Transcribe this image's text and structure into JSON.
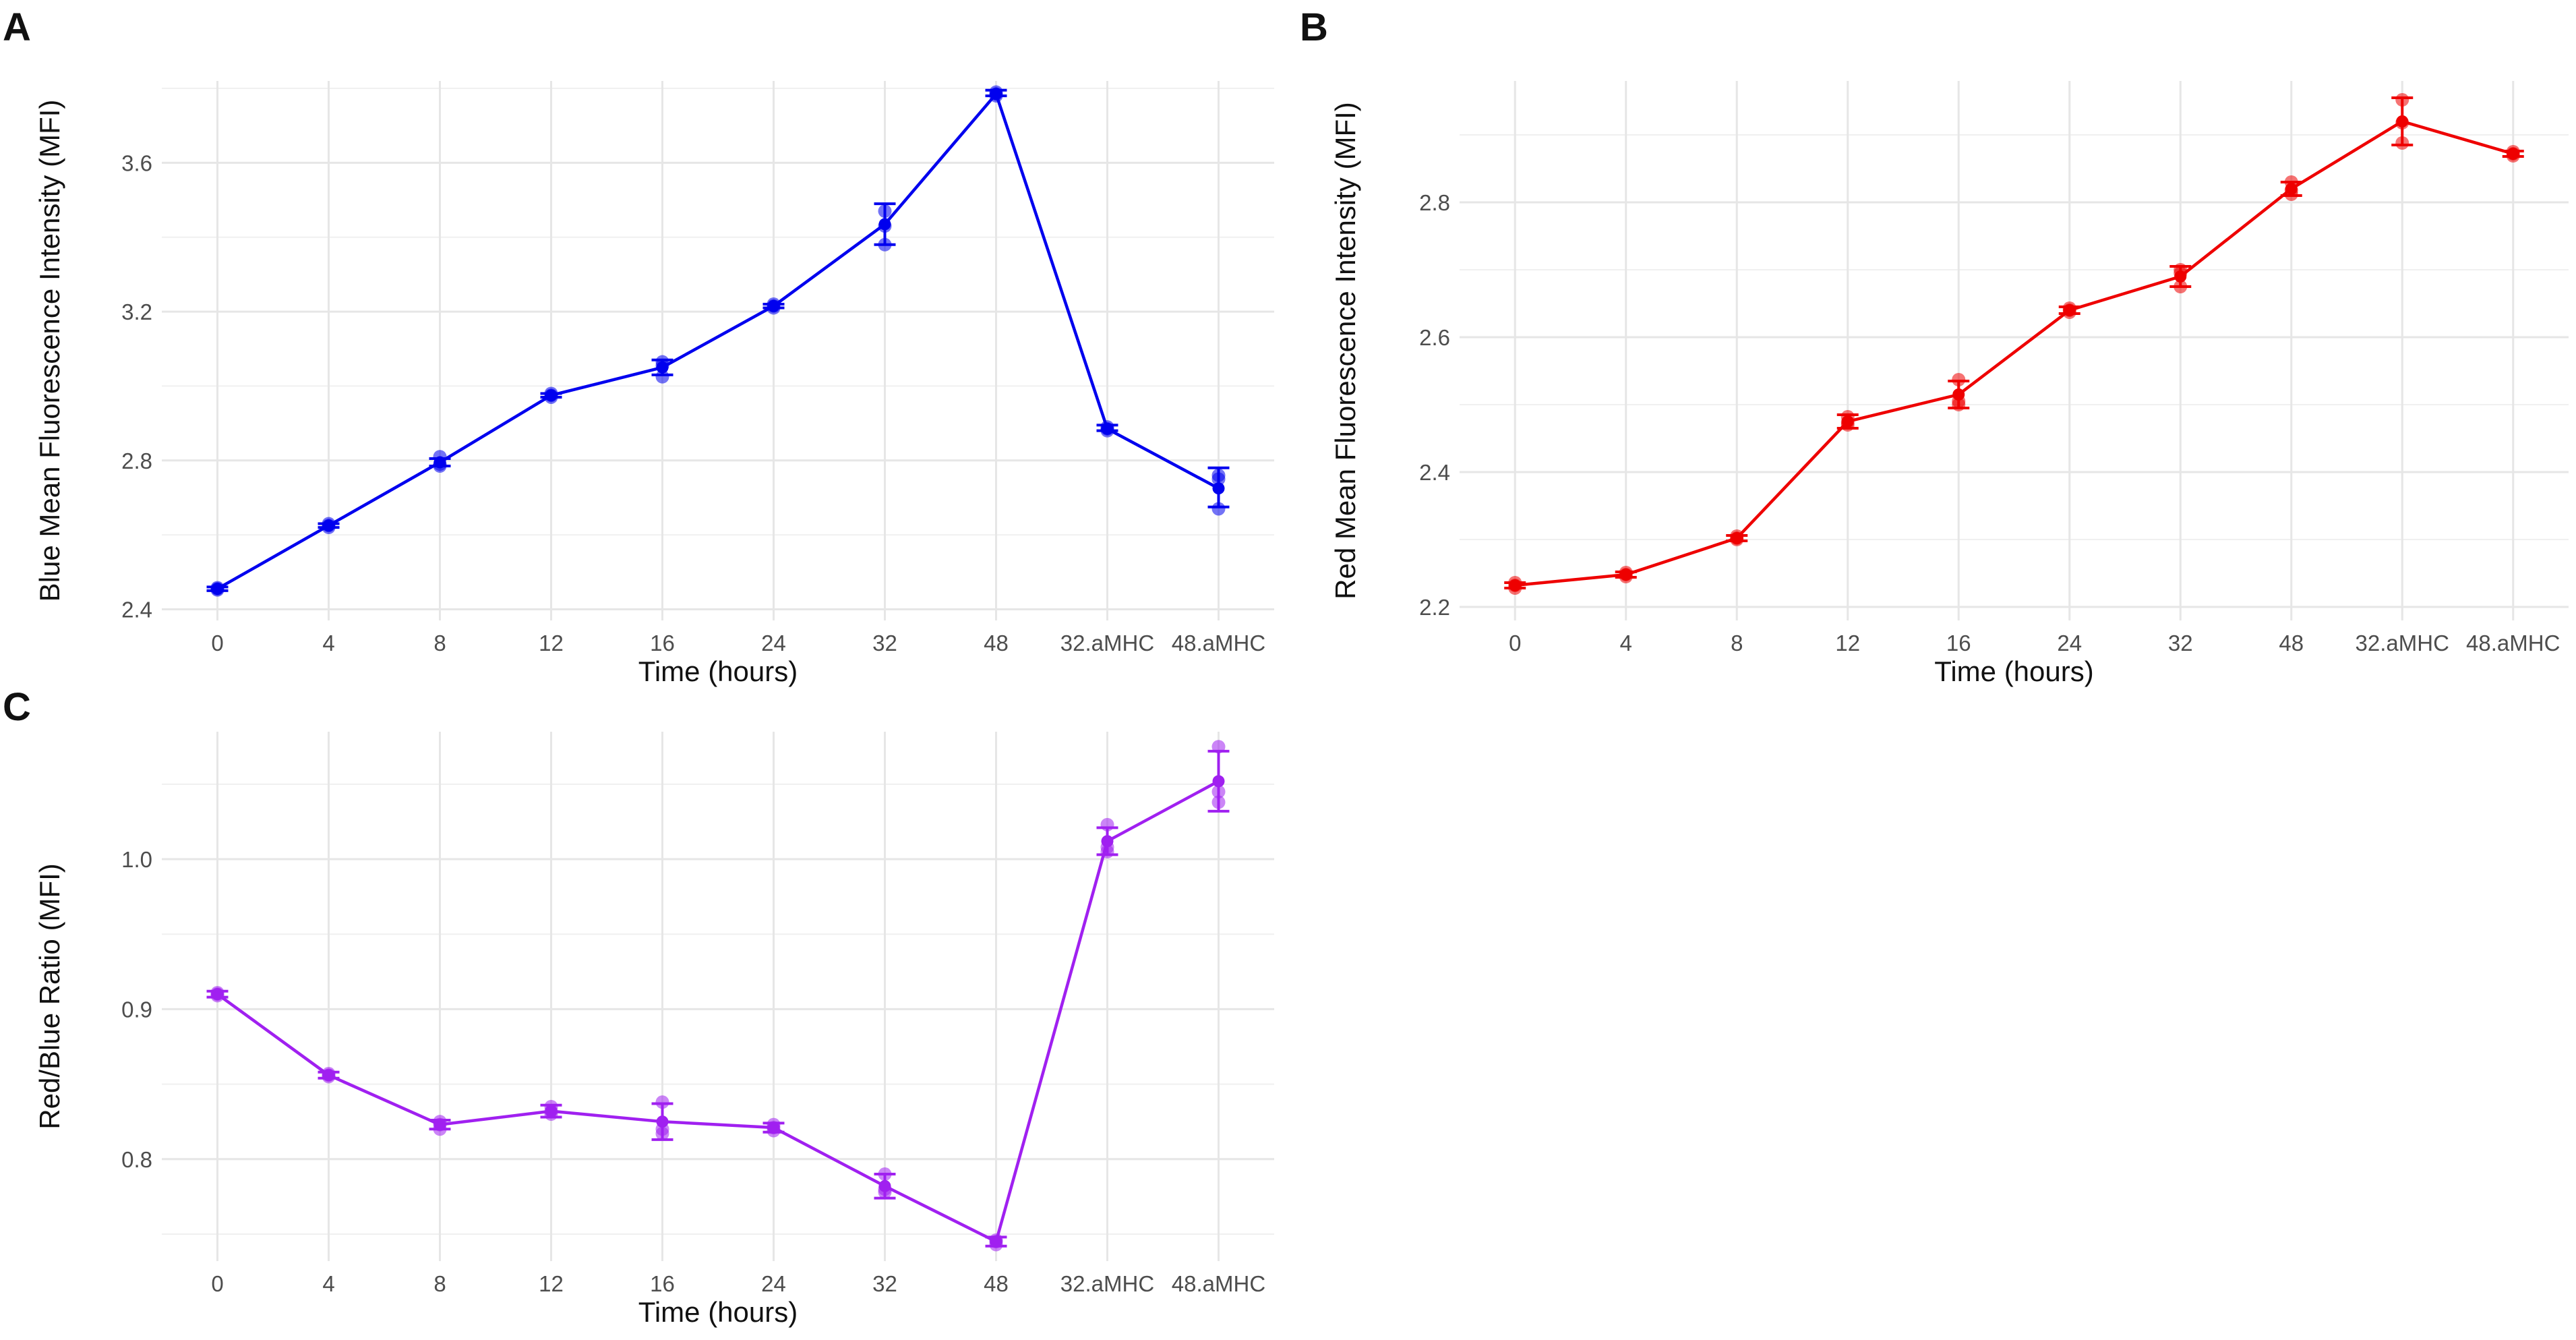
{
  "chart_data": [
    {
      "panel": "A",
      "type": "line",
      "title": "",
      "xlabel": "Time (hours)",
      "ylabel": "Blue Mean Fluorescence Intensity (MFI)",
      "categories": [
        "0",
        "4",
        "8",
        "12",
        "16",
        "24",
        "32",
        "48",
        "32.aMHC",
        "48.aMHC"
      ],
      "ylim": [
        2.37,
        3.82
      ],
      "yticks": [
        2.4,
        2.8,
        3.2,
        3.6
      ],
      "ytick_labels": [
        "2.4",
        "2.8",
        "3.2",
        "3.6"
      ],
      "grid": true,
      "legend": "none",
      "color": "#0000ee",
      "series": [
        {
          "mean": [
            2.455,
            2.625,
            2.795,
            2.975,
            3.05,
            3.215,
            3.435,
            3.785,
            2.885,
            2.725
          ],
          "error_low": [
            2.45,
            2.62,
            2.785,
            2.97,
            3.03,
            3.21,
            3.38,
            3.78,
            2.88,
            2.675
          ],
          "error_high": [
            2.46,
            2.63,
            2.805,
            2.98,
            3.07,
            3.22,
            3.49,
            3.795,
            2.895,
            2.78
          ],
          "points": [
            [
              2.452,
              2.455,
              2.458
            ],
            [
              2.62,
              2.625,
              2.63
            ],
            [
              2.785,
              2.79,
              2.81
            ],
            [
              2.97,
              2.975,
              2.98
            ],
            [
              3.025,
              3.055,
              3.065
            ],
            [
              3.21,
              3.215,
              3.22
            ],
            [
              3.38,
              3.43,
              3.47
            ],
            [
              3.78,
              3.785,
              3.79
            ],
            [
              2.88,
              2.885,
              2.89
            ],
            [
              2.67,
              2.75,
              2.76
            ]
          ]
        }
      ]
    },
    {
      "panel": "B",
      "type": "line",
      "title": "",
      "xlabel": "Time (hours)",
      "ylabel": "Red Mean Fluorescence Intensity (MFI)",
      "categories": [
        "0",
        "4",
        "8",
        "12",
        "16",
        "24",
        "32",
        "48",
        "32.aMHC",
        "48.aMHC"
      ],
      "ylim": [
        2.18,
        2.98
      ],
      "yticks": [
        2.2,
        2.4,
        2.6,
        2.8
      ],
      "ytick_labels": [
        "2.2",
        "2.4",
        "2.6",
        "2.8"
      ],
      "grid": true,
      "legend": "none",
      "color": "#ee0000",
      "series": [
        {
          "mean": [
            2.232,
            2.248,
            2.302,
            2.475,
            2.515,
            2.64,
            2.69,
            2.82,
            2.92,
            2.872
          ],
          "error_low": [
            2.228,
            2.244,
            2.298,
            2.465,
            2.495,
            2.635,
            2.675,
            2.81,
            2.885,
            2.868
          ],
          "error_high": [
            2.236,
            2.252,
            2.306,
            2.485,
            2.535,
            2.645,
            2.705,
            2.83,
            2.955,
            2.876
          ],
          "points": [
            [
              2.228,
              2.232,
              2.236
            ],
            [
              2.245,
              2.248,
              2.251
            ],
            [
              2.3,
              2.302,
              2.305
            ],
            [
              2.47,
              2.474,
              2.482
            ],
            [
              2.5,
              2.505,
              2.537
            ],
            [
              2.637,
              2.64,
              2.643
            ],
            [
              2.675,
              2.695,
              2.7
            ],
            [
              2.812,
              2.818,
              2.83
            ],
            [
              2.888,
              2.918,
              2.952
            ],
            [
              2.869,
              2.872,
              2.875
            ]
          ]
        }
      ]
    },
    {
      "panel": "C",
      "type": "line",
      "title": "",
      "xlabel": "Time (hours)",
      "ylabel": "Red/Blue Ratio (MFI)",
      "categories": [
        "0",
        "4",
        "8",
        "12",
        "16",
        "24",
        "32",
        "48",
        "32.aMHC",
        "48.aMHC"
      ],
      "ylim": [
        0.732,
        1.085
      ],
      "yticks": [
        0.8,
        0.9,
        1.0
      ],
      "ytick_labels": [
        "0.8",
        "0.9",
        "1.0"
      ],
      "grid": true,
      "legend": "none",
      "color": "#a020f0",
      "series": [
        {
          "mean": [
            0.91,
            0.856,
            0.823,
            0.832,
            0.825,
            0.821,
            0.782,
            0.745,
            1.012,
            1.052
          ],
          "error_low": [
            0.908,
            0.854,
            0.82,
            0.828,
            0.813,
            0.818,
            0.774,
            0.742,
            1.003,
            1.032
          ],
          "error_high": [
            0.912,
            0.858,
            0.826,
            0.836,
            0.837,
            0.824,
            0.79,
            0.748,
            1.021,
            1.072
          ],
          "points": [
            [
              0.909,
              0.91,
              0.911
            ],
            [
              0.855,
              0.856,
              0.857
            ],
            [
              0.82,
              0.823,
              0.825
            ],
            [
              0.83,
              0.832,
              0.835
            ],
            [
              0.817,
              0.82,
              0.838
            ],
            [
              0.819,
              0.821,
              0.823
            ],
            [
              0.778,
              0.78,
              0.79
            ],
            [
              0.743,
              0.745,
              0.746
            ],
            [
              1.005,
              1.008,
              1.023
            ],
            [
              1.038,
              1.045,
              1.075
            ]
          ]
        }
      ]
    }
  ]
}
